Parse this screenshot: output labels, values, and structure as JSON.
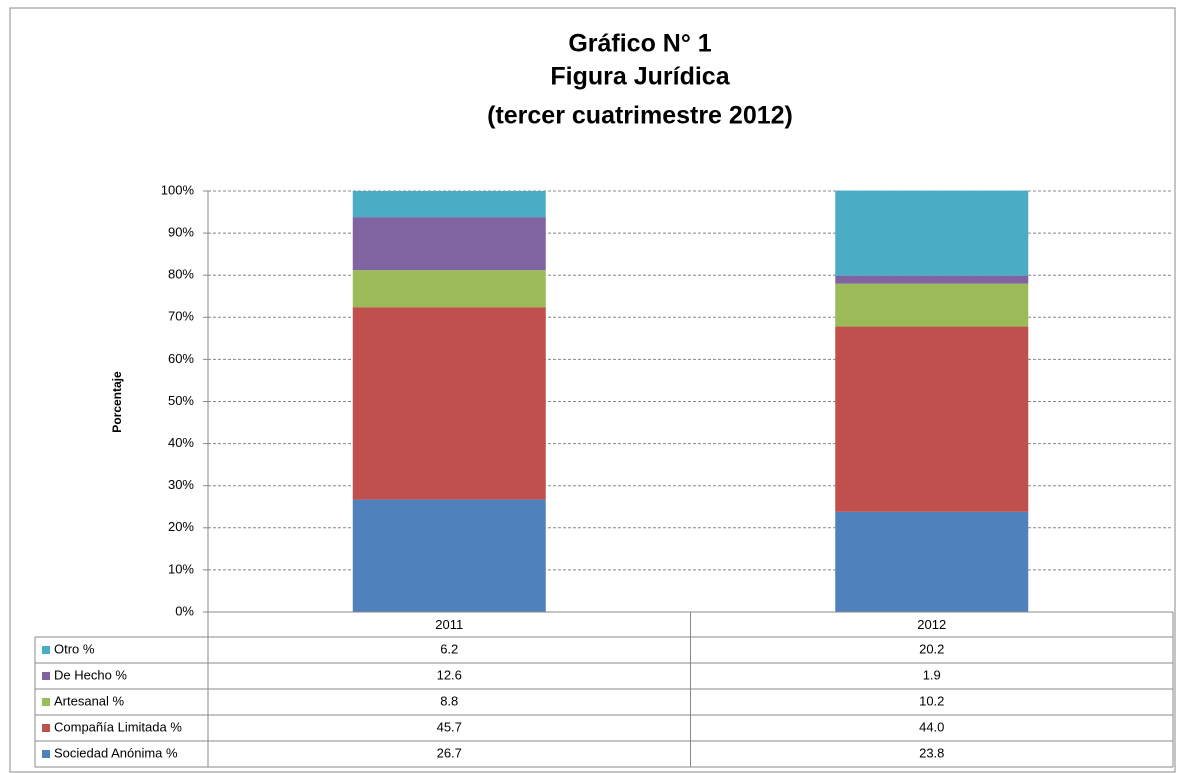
{
  "chart_data": {
    "type": "stacked_bar",
    "title": [
      "Gráfico N° 1",
      "Figura Jurídica",
      "(tercer cuatrimestre 2012)"
    ],
    "y_label": "Porcentaje",
    "categories": [
      "2011",
      "2012"
    ],
    "series": [
      {
        "name": "Sociedad Anónima %",
        "color": "#4f81bd",
        "values": [
          26.7,
          23.8
        ],
        "value_labels": [
          "26.7",
          "23.8"
        ]
      },
      {
        "name": "Compañía Limitada %",
        "color": "#c0504d",
        "values": [
          45.7,
          44.0
        ],
        "value_labels": [
          "45.7",
          "44.0"
        ]
      },
      {
        "name": "Artesanal %",
        "color": "#9bbb59",
        "values": [
          8.8,
          10.2
        ],
        "value_labels": [
          "8.8",
          "10.2"
        ]
      },
      {
        "name": "De Hecho %",
        "color": "#8064a2",
        "values": [
          12.6,
          1.9
        ],
        "value_labels": [
          "12.6",
          "1.9"
        ]
      },
      {
        "name": "Otro %",
        "color": "#4bacc6",
        "values": [
          6.2,
          20.2
        ],
        "value_labels": [
          "6.2",
          "20.2"
        ]
      }
    ],
    "ylim": [
      0,
      100
    ],
    "yticks": [
      {
        "value": 0,
        "label": "0%"
      },
      {
        "value": 10,
        "label": "10%"
      },
      {
        "value": 20,
        "label": "20%"
      },
      {
        "value": 30,
        "label": "30%"
      },
      {
        "value": 40,
        "label": "40%"
      },
      {
        "value": 50,
        "label": "50%"
      },
      {
        "value": 60,
        "label": "60%"
      },
      {
        "value": 70,
        "label": "70%"
      },
      {
        "value": 80,
        "label": "80%"
      },
      {
        "value": 90,
        "label": "90%"
      },
      {
        "value": 100,
        "label": "100%"
      }
    ],
    "grid": true
  }
}
